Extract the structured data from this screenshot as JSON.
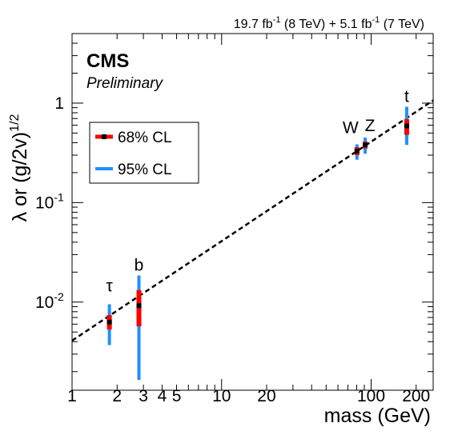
{
  "header": {
    "lumi_a": "19.7 fb",
    "lumi_a_exp": "-1",
    "lumi_a_energy": " (8 TeV) +  5.1 fb",
    "lumi_b_exp": "-1",
    "lumi_b_energy": " (7 TeV)"
  },
  "cms_label": "CMS",
  "preliminary_label": "Preliminary",
  "chart_data": {
    "type": "scatter",
    "title": "",
    "xlabel": "mass (GeV)",
    "ylabel_main": "λ or (g/2v)",
    "ylabel_exp": "1/2",
    "x_scale": "log",
    "y_scale": "log",
    "xlim": [
      1,
      260
    ],
    "ylim": [
      0.0013,
      5
    ],
    "x_ticks": [
      {
        "value": 1,
        "label": "1"
      },
      {
        "value": 2,
        "label": "2"
      },
      {
        "value": 3,
        "label": "3"
      },
      {
        "value": 4,
        "label": "4"
      },
      {
        "value": 5,
        "label": "5"
      },
      {
        "value": 10,
        "label": "10"
      },
      {
        "value": 20,
        "label": "20"
      },
      {
        "value": 100,
        "label": "100"
      },
      {
        "value": 200,
        "label": "200"
      }
    ],
    "y_ticks": [
      {
        "value": 0.01,
        "base": "10",
        "exp": "-2"
      },
      {
        "value": 0.1,
        "base": "10",
        "exp": "-1"
      },
      {
        "value": 1,
        "base": "1",
        "exp": ""
      }
    ],
    "sm_line": {
      "x": [
        1,
        260
      ],
      "y": [
        0.0041,
        1.065
      ],
      "style": "dashed",
      "color": "#000000"
    },
    "points": [
      {
        "label": "τ",
        "mass": 1.777,
        "value": 0.0063,
        "cl68": [
          0.0053,
          0.0074
        ],
        "cl95": [
          0.0037,
          0.0095
        ]
      },
      {
        "label": "b",
        "mass": 2.8,
        "value": 0.0092,
        "cl68": [
          0.0057,
          0.0132
        ],
        "cl95": [
          0.00165,
          0.0185
        ]
      },
      {
        "label": "W",
        "mass": 80.4,
        "value": 0.33,
        "cl68": [
          0.3,
          0.36
        ],
        "cl95": [
          0.27,
          0.385
        ]
      },
      {
        "label": "Z",
        "mass": 91.2,
        "value": 0.38,
        "cl68": [
          0.35,
          0.41
        ],
        "cl95": [
          0.31,
          0.45
        ]
      },
      {
        "label": "t",
        "mass": 173,
        "value": 0.59,
        "cl68": [
          0.48,
          0.69
        ],
        "cl95": [
          0.38,
          0.92
        ]
      }
    ],
    "legend": {
      "position": "upper-left",
      "entries": [
        {
          "label": "68% CL",
          "color": "#ff0000"
        },
        {
          "label": "95% CL",
          "color": "#1e90ff"
        }
      ]
    },
    "colors": {
      "cl68": "#ff0000",
      "cl95": "#1e90ff",
      "marker": "#000000"
    }
  }
}
